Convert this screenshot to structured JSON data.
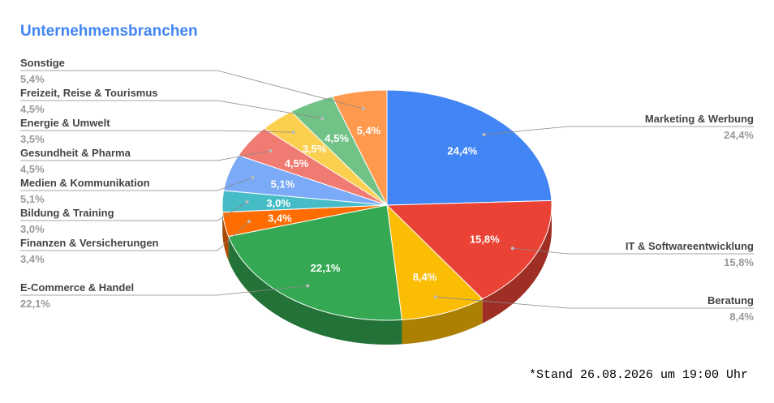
{
  "chart_data": {
    "type": "pie",
    "title": "Unternehmensbranchen",
    "categories": [
      "Marketing & Werbung",
      "IT & Softwareentwicklung",
      "Beratung",
      "E-Commerce & Handel",
      "Finanzen & Versicherungen",
      "Bildung & Training",
      "Medien & Kommunikation",
      "Gesundheit & Pharma",
      "Energie & Umwelt",
      "Freizeit, Reise & Tourismus",
      "Sonstige"
    ],
    "values": [
      24.4,
      15.8,
      8.4,
      22.1,
      3.4,
      3.0,
      5.1,
      4.5,
      3.5,
      4.5,
      5.4
    ],
    "value_labels": [
      "24,4%",
      "15,8%",
      "8,4%",
      "22,1%",
      "3,4%",
      "3,0%",
      "5,1%",
      "4,5%",
      "3,5%",
      "4,5%",
      "5,4%"
    ],
    "colors": [
      "#4285f4",
      "#ea4335",
      "#fbbc04",
      "#34a853",
      "#ff6d01",
      "#46bdc6",
      "#7baaf7",
      "#f07b72",
      "#fcd04f",
      "#71c287",
      "#ff994d"
    ],
    "note": "*Stand 26.08.2026 um 19:00 Uhr"
  }
}
